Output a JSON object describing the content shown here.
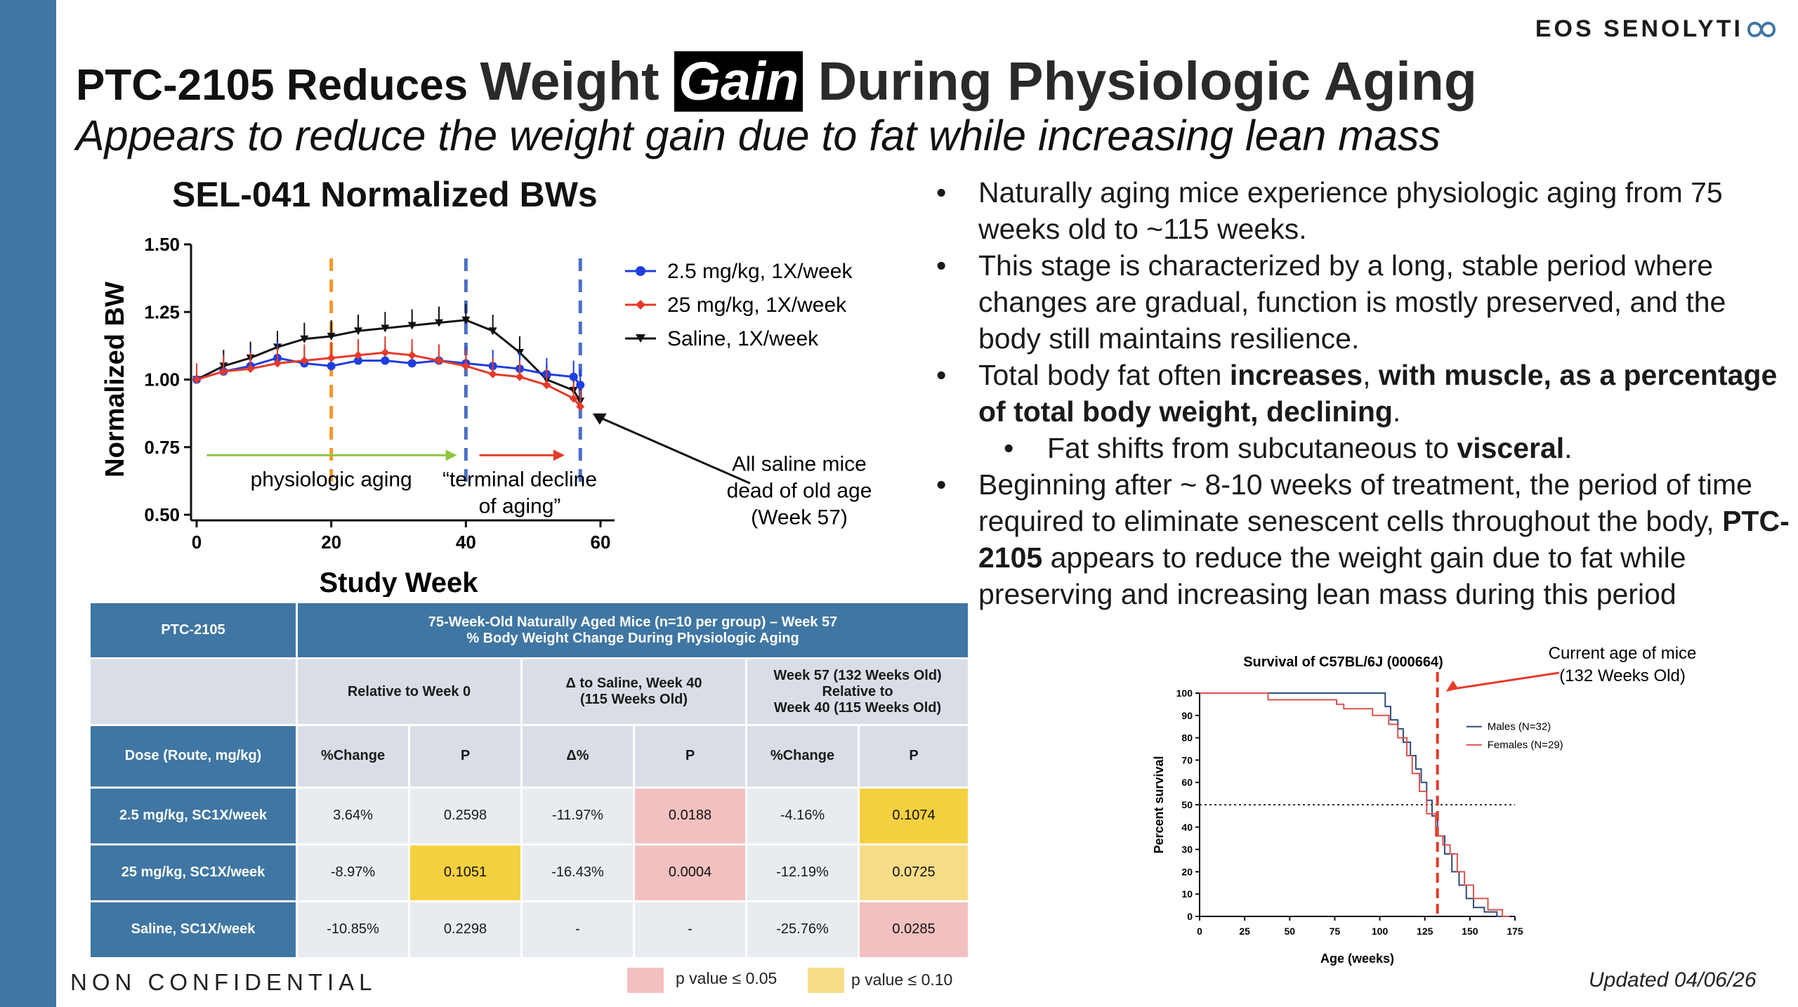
{
  "logo": {
    "text": "EOS SENOLYTI"
  },
  "title": {
    "part1": "PTC-2105 Reduces ",
    "part2": "Weight ",
    "highlight": "Gain",
    "part3": " During Physiologic Aging"
  },
  "subtitle": "Appears to reduce the weight gain due to fat while increasing lean mass",
  "bullets": {
    "b1": "Naturally aging mice experience physiologic aging from 75 weeks old to ~115 weeks.",
    "b2": "This stage is characterized by a long, stable period where changes are gradual, function is mostly preserved, and the body still maintains resilience.",
    "b3_a": "Total body fat often ",
    "b3_b": "increases",
    "b3_c": ", ",
    "b3_d": "with muscle, as a percentage of total body weight, declining",
    "b3_e": ".",
    "b4_a": "Fat shifts from subcutaneous to ",
    "b4_b": "visceral",
    "b4_c": ".",
    "b5_a": "Beginning after ~ 8-10 weeks of treatment, the period of time required to eliminate senescent cells throughout the body, ",
    "b5_b": "PTC-2105",
    "b5_c": " appears to reduce the weight gain due to fat while preserving and increasing lean mass during this period"
  },
  "table": {
    "drug": "PTC-2105",
    "header_line1": "75-Week-Old Naturally Aged Mice (n=10 per group) – Week 57",
    "header_line2": "% Body Weight Change During Physiologic Aging",
    "group1": "Relative to Week 0",
    "group2_l1": "Δ to Saline, Week 40",
    "group2_l2": "(115 Weeks Old)",
    "group3_l1": "Week 57 (132 Weeks Old)",
    "group3_l2": "Relative to",
    "group3_l3": "Week 40 (115 Weeks Old)",
    "dose_label": "Dose (Route, mg/kg)",
    "c1": "%Change",
    "c2": "P",
    "c3": "Δ%",
    "c4": "P",
    "c5": "%Change",
    "c6": "P",
    "rows": [
      {
        "dose": "2.5 mg/kg, SC1X/week",
        "v": [
          "3.64%",
          "0.2598",
          "-11.97%",
          "0.0188",
          "-4.16%",
          "0.1074"
        ]
      },
      {
        "dose": "25 mg/kg, SC1X/week",
        "v": [
          "-8.97%",
          "0.1051",
          "-16.43%",
          "0.0004",
          "-12.19%",
          "0.0725"
        ]
      },
      {
        "dose": "Saline, SC1X/week",
        "v": [
          "-10.85%",
          "0.2298",
          "-",
          "-",
          "-25.76%",
          "0.0285"
        ]
      }
    ]
  },
  "footer": {
    "confidential": "NON CONFIDENTIAL",
    "legend_p05": "p value ≤ 0.05",
    "legend_p10": "p value ≤ 0.10",
    "updated": "Updated 04/06/26"
  },
  "colors": {
    "accent": "#3f76a3",
    "blue": "#1f3ee0",
    "red": "#e53a2a",
    "black": "#111111",
    "orange": "#f2982e",
    "green": "#8dc63f"
  },
  "chart_data": [
    {
      "type": "line",
      "title": "SEL-041 Normalized BWs",
      "xlabel": "Study Week",
      "ylabel": "Normalized BW",
      "xlim": [
        0,
        60
      ],
      "ylim": [
        0.5,
        1.5
      ],
      "xticks": [
        0,
        20,
        40,
        60
      ],
      "yticks": [
        0.5,
        0.75,
        1.0,
        1.25,
        1.5
      ],
      "ytick_labels": [
        "0.50",
        "0.75",
        "1.00",
        "1.25",
        "1.50"
      ],
      "series": [
        {
          "name": "2.5 mg/kg, 1X/week",
          "color": "#1f3ee0",
          "x": [
            0,
            4,
            8,
            12,
            16,
            20,
            24,
            28,
            32,
            36,
            40,
            44,
            48,
            52,
            56,
            57
          ],
          "y": [
            1.0,
            1.03,
            1.05,
            1.08,
            1.06,
            1.05,
            1.07,
            1.07,
            1.06,
            1.07,
            1.06,
            1.05,
            1.04,
            1.02,
            1.01,
            0.98
          ]
        },
        {
          "name": "25 mg/kg, 1X/week",
          "color": "#e53a2a",
          "x": [
            0,
            4,
            8,
            12,
            16,
            20,
            24,
            28,
            32,
            36,
            40,
            44,
            48,
            52,
            56,
            57
          ],
          "y": [
            1.0,
            1.03,
            1.04,
            1.06,
            1.07,
            1.08,
            1.09,
            1.1,
            1.09,
            1.07,
            1.05,
            1.02,
            1.01,
            0.98,
            0.93,
            0.9
          ]
        },
        {
          "name": "Saline, 1X/week",
          "color": "#111111",
          "x": [
            0,
            4,
            8,
            12,
            16,
            20,
            24,
            28,
            32,
            36,
            40,
            44,
            48,
            52,
            56,
            57
          ],
          "y": [
            1.0,
            1.05,
            1.08,
            1.12,
            1.15,
            1.16,
            1.18,
            1.19,
            1.2,
            1.21,
            1.22,
            1.18,
            1.1,
            1.0,
            0.96,
            0.92
          ]
        }
      ],
      "annotations": [
        "physiologic aging",
        "“terminal decline",
        "of aging”",
        "All saline mice",
        "dead of old age",
        "(Week 57)"
      ]
    },
    {
      "type": "line",
      "title": "Survival of C57BL/6J (000664)",
      "xlabel": "Age (weeks)",
      "ylabel": "Percent survival",
      "xlim": [
        0,
        175
      ],
      "ylim": [
        0,
        100
      ],
      "xticks": [
        0,
        25,
        50,
        75,
        100,
        125,
        150,
        175
      ],
      "yticks": [
        0,
        10,
        20,
        30,
        40,
        50,
        60,
        70,
        80,
        90,
        100
      ],
      "series": [
        {
          "name": "Males (N=32)",
          "color": "#2e4a7a",
          "x": [
            0,
            100,
            103,
            106,
            110,
            113,
            117,
            120,
            123,
            126,
            129,
            132,
            136,
            140,
            144,
            148,
            152,
            158,
            165
          ],
          "y": [
            100,
            100,
            94,
            88,
            84,
            78,
            72,
            66,
            60,
            52,
            45,
            36,
            28,
            20,
            14,
            8,
            4,
            2,
            0
          ]
        },
        {
          "name": "Females (N=29)",
          "color": "#d9534f",
          "x": [
            0,
            38,
            76,
            80,
            96,
            105,
            110,
            115,
            118,
            122,
            126,
            131,
            135,
            139,
            143,
            147,
            152,
            160,
            168
          ],
          "y": [
            100,
            97,
            95,
            93,
            90,
            86,
            80,
            72,
            64,
            56,
            46,
            36,
            32,
            28,
            20,
            14,
            8,
            3,
            0
          ]
        }
      ],
      "reference_line": {
        "label": "Current age of mice",
        "sublabel": "(132 Weeks Old)",
        "x": 132
      },
      "median_line": 50
    }
  ]
}
